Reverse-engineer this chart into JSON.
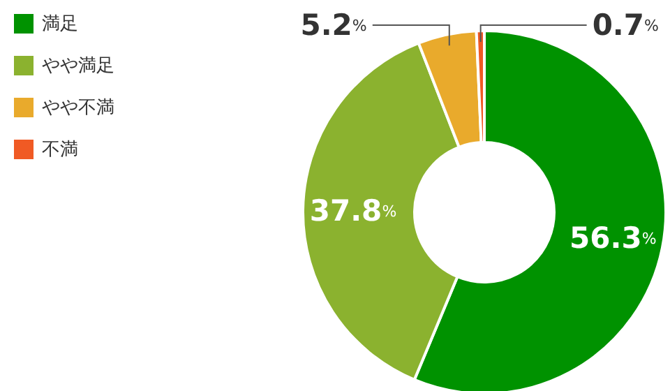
{
  "chart_data": {
    "type": "donut",
    "categories": [
      "満足",
      "やや満足",
      "やや不満",
      "不満"
    ],
    "values": [
      56.3,
      37.8,
      5.2,
      0.7
    ],
    "colors": [
      "#009200",
      "#8bb22f",
      "#e9aa2c",
      "#f05a24"
    ],
    "value_labels": [
      "56.3%",
      "37.8%",
      "5.2%",
      "0.7%"
    ],
    "legend": "top left"
  }
}
